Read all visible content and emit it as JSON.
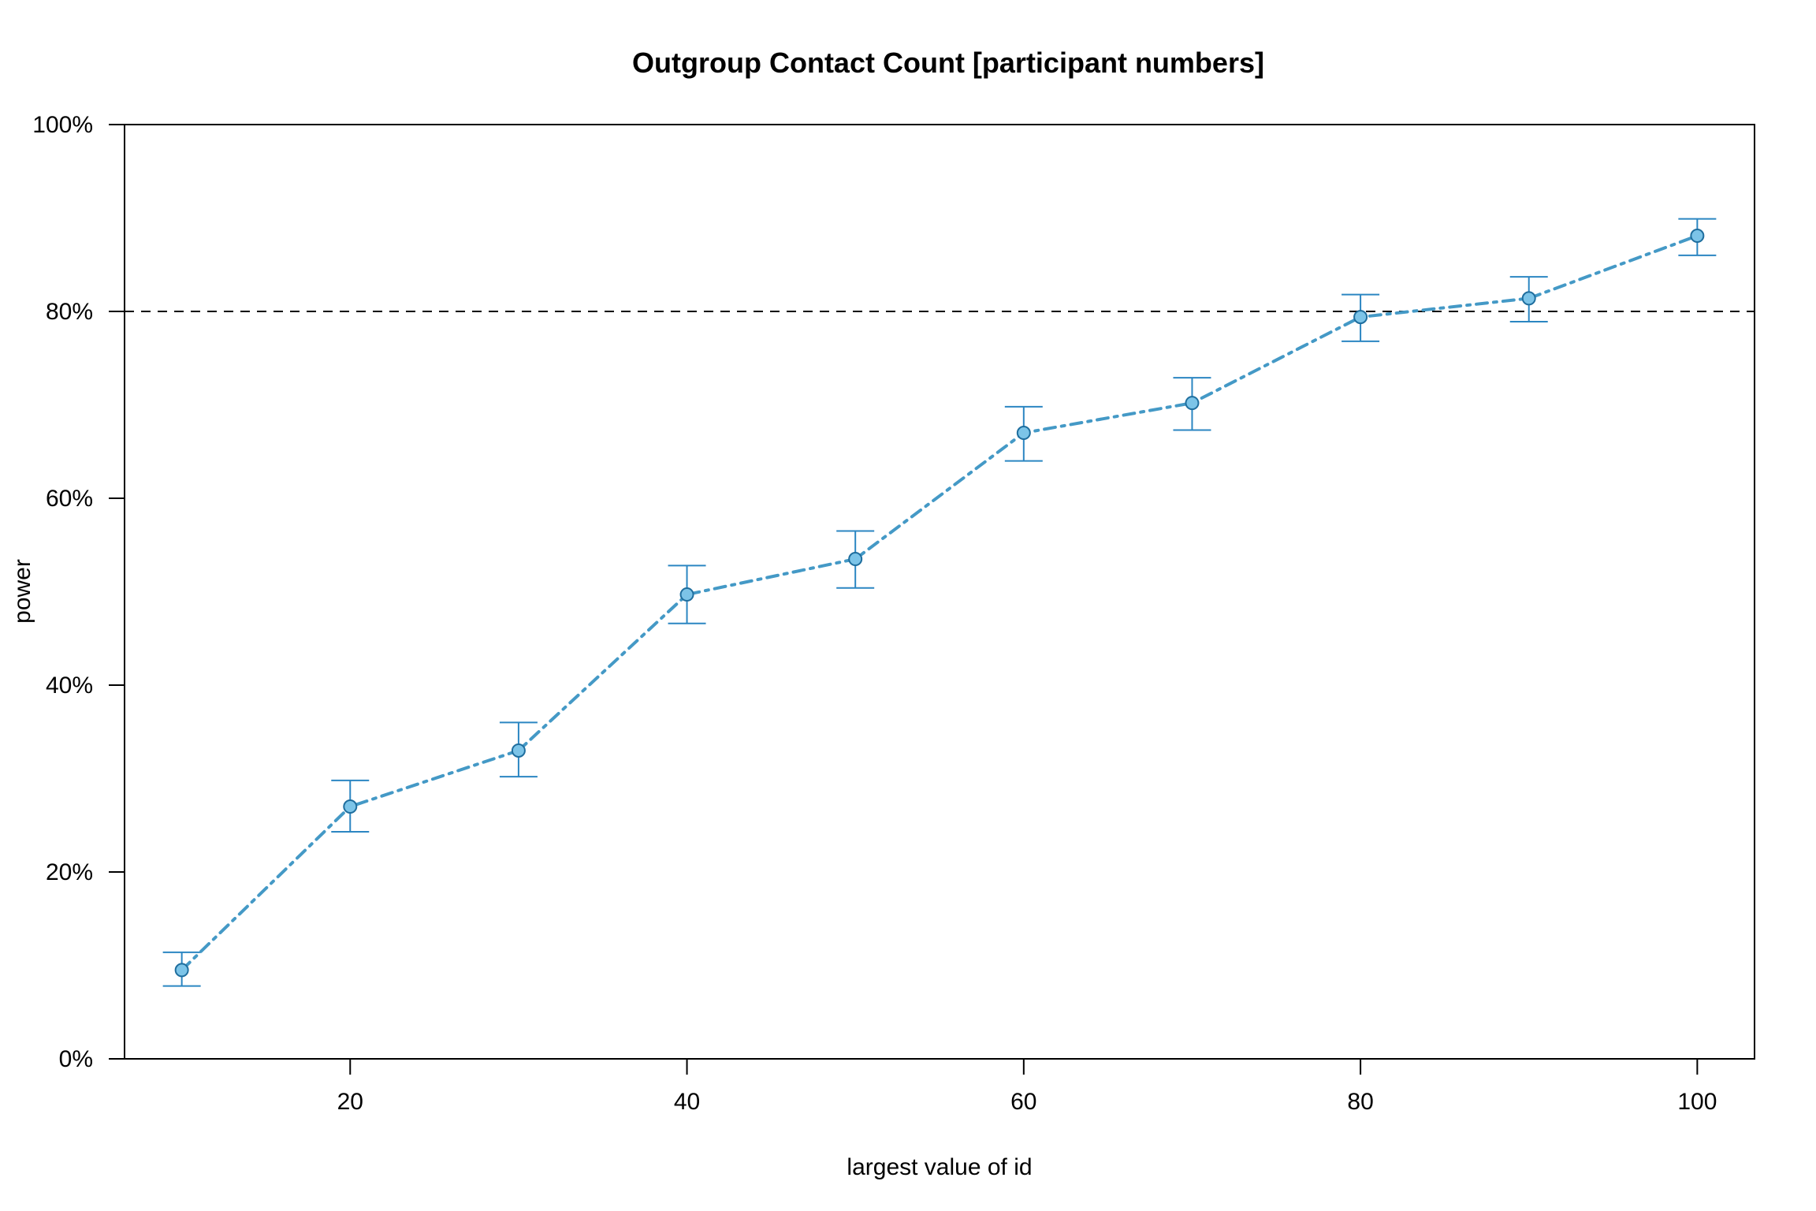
{
  "chart_data": {
    "type": "line",
    "title": "Outgroup Contact Count [participant numbers]",
    "xlabel": "largest value of id",
    "ylabel": "power",
    "xlim": [
      6.6,
      103.4
    ],
    "ylim": [
      0,
      100
    ],
    "x_ticks": [
      20,
      40,
      60,
      80,
      100
    ],
    "y_ticks": [
      0,
      20,
      40,
      60,
      80,
      100
    ],
    "x_tick_labels": [
      "20",
      "40",
      "60",
      "80",
      "100"
    ],
    "y_tick_labels": [
      "0%",
      "20%",
      "40%",
      "60%",
      "80%",
      "100%"
    ],
    "reference_line": {
      "y": 80,
      "style": "dashed",
      "color": "#000000"
    },
    "grid": false,
    "series": [
      {
        "color": "#4499C6",
        "errorbar_color": "#2B86C2",
        "point_fill": "#7CC4E8",
        "line_style": "dash-dot",
        "x": [
          10,
          20,
          30,
          40,
          50,
          60,
          70,
          80,
          90,
          100
        ],
        "y": [
          9.5,
          27.0,
          33.0,
          49.7,
          53.5,
          67.0,
          70.2,
          79.4,
          81.4,
          88.1
        ],
        "lower": [
          7.8,
          24.3,
          30.2,
          46.6,
          50.4,
          64.0,
          67.3,
          76.8,
          78.9,
          86.0
        ],
        "upper": [
          11.4,
          29.8,
          36.0,
          52.8,
          56.5,
          69.8,
          72.9,
          81.8,
          83.7,
          89.9
        ]
      }
    ]
  }
}
